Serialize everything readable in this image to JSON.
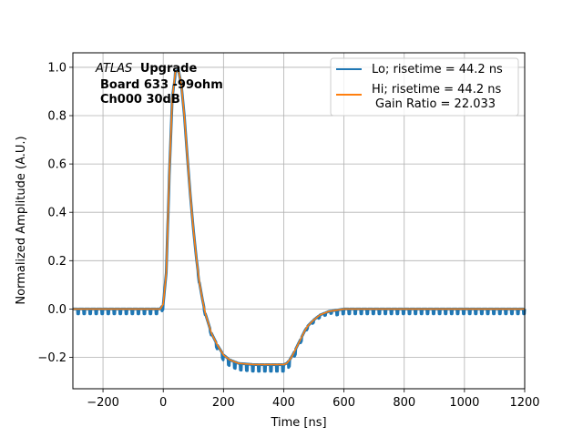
{
  "chart_data": {
    "type": "line",
    "xlabel": "Time [ns]",
    "ylabel": "Normalized Amplitude (A.U.)",
    "xlim": [
      -300,
      1200
    ],
    "ylim": [
      -0.33,
      1.06
    ],
    "x_ticks": [
      -200,
      0,
      200,
      400,
      600,
      800,
      1000,
      1200
    ],
    "x_tick_labels": [
      "−200",
      "0",
      "200",
      "400",
      "600",
      "800",
      "1000",
      "1200"
    ],
    "y_ticks": [
      -0.2,
      0.0,
      0.2,
      0.4,
      0.6,
      0.8,
      1.0
    ],
    "y_tick_labels": [
      "−0.2",
      "0.0",
      "0.2",
      "0.4",
      "0.6",
      "0.8",
      "1.0"
    ],
    "grid": true,
    "legend_position": "top-right",
    "annotation": {
      "italic": "ATLAS",
      "bold": "Upgrade",
      "line2": "Board 633 -99ohm",
      "line3": "Ch000 30dB"
    },
    "series": [
      {
        "name": "Lo; risetime = 44.2 ns",
        "color": "#1f77b4",
        "x": [
          -300,
          -10,
          0,
          10,
          20,
          30,
          40,
          50,
          60,
          70,
          80,
          90,
          100,
          110,
          120,
          130,
          140,
          150,
          160,
          180,
          200,
          220,
          250,
          300,
          350,
          400,
          410,
          420,
          430,
          440,
          450,
          460,
          470,
          480,
          500,
          520,
          550,
          600,
          700,
          800,
          1000,
          1200
        ],
        "values": [
          0.0,
          0.0,
          0.02,
          0.15,
          0.55,
          0.87,
          0.98,
          0.99,
          0.93,
          0.8,
          0.63,
          0.47,
          0.33,
          0.21,
          0.11,
          0.04,
          -0.02,
          -0.06,
          -0.1,
          -0.15,
          -0.19,
          -0.21,
          -0.225,
          -0.23,
          -0.23,
          -0.23,
          -0.225,
          -0.21,
          -0.19,
          -0.165,
          -0.14,
          -0.115,
          -0.09,
          -0.07,
          -0.045,
          -0.025,
          -0.01,
          0.0,
          0.0,
          0.0,
          0.0,
          0.0
        ],
        "sample_dips": true
      },
      {
        "name": "Hi; risetime = 44.2 ns",
        "name_line2": "Gain Ratio = 22.033",
        "color": "#ff7f0e",
        "x": [
          -300,
          -10,
          0,
          10,
          20,
          30,
          40,
          50,
          60,
          70,
          80,
          90,
          100,
          110,
          120,
          130,
          140,
          150,
          160,
          180,
          200,
          220,
          250,
          300,
          350,
          400,
          410,
          420,
          430,
          440,
          450,
          460,
          470,
          480,
          500,
          520,
          550,
          600,
          700,
          800,
          1000,
          1200
        ],
        "values": [
          0.0,
          0.0,
          0.02,
          0.15,
          0.55,
          0.87,
          0.98,
          0.99,
          0.93,
          0.8,
          0.63,
          0.47,
          0.33,
          0.21,
          0.11,
          0.04,
          -0.02,
          -0.06,
          -0.1,
          -0.15,
          -0.19,
          -0.21,
          -0.225,
          -0.23,
          -0.23,
          -0.23,
          -0.225,
          -0.21,
          -0.19,
          -0.165,
          -0.14,
          -0.115,
          -0.09,
          -0.07,
          -0.045,
          -0.025,
          -0.01,
          0.0,
          0.0,
          0.0,
          0.0,
          0.0
        ]
      }
    ]
  }
}
